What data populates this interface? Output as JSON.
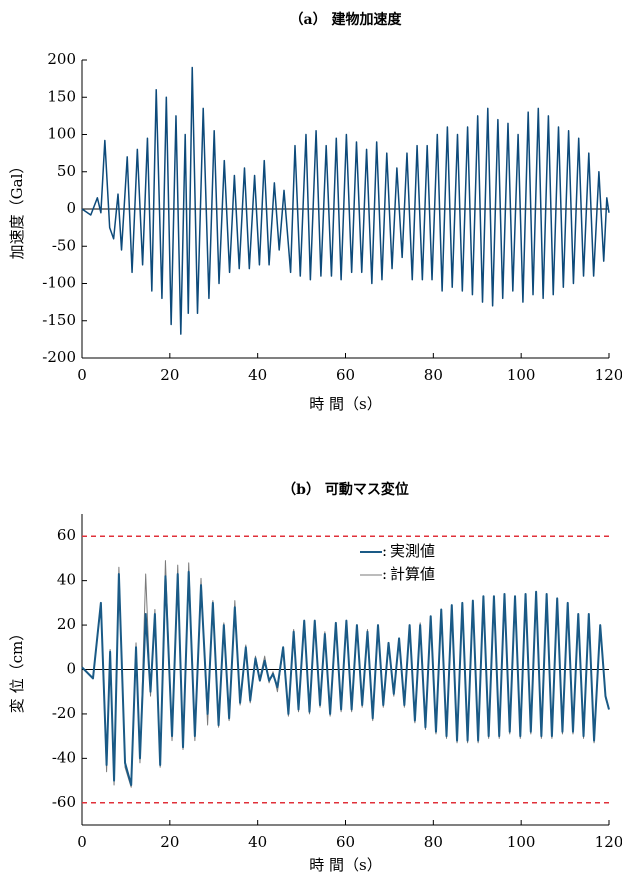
{
  "chart_data": [
    {
      "type": "line",
      "title": "（a） 建物加速度",
      "x_label": "時 間（s）",
      "y_label": "加速度（Gal）",
      "xlim": [
        0,
        120
      ],
      "xticks": [
        0,
        20,
        40,
        60,
        80,
        100,
        120
      ],
      "ylim": [
        -200,
        200
      ],
      "yticks": [
        -200,
        -150,
        -100,
        -50,
        0,
        50,
        100,
        150,
        200
      ],
      "x": [
        0,
        2,
        3.5,
        4.3,
        5.2,
        6.3,
        7.2,
        8.2,
        9,
        10.3,
        11.4,
        12.6,
        13.8,
        14.9,
        15.9,
        16.9,
        18.2,
        19.2,
        20.3,
        21.4,
        22.5,
        23.5,
        24.2,
        25.1,
        26.3,
        27.6,
        28.9,
        30.1,
        31.2,
        32.4,
        33.6,
        34.7,
        35.8,
        37,
        38.1,
        39.3,
        40.4,
        41.5,
        42.6,
        43.8,
        44.9,
        46,
        47.5,
        48.5,
        49.7,
        51,
        52,
        53.3,
        54.4,
        55.6,
        56.8,
        57.9,
        59,
        60.2,
        61.4,
        62.5,
        63.7,
        64.8,
        66,
        67.1,
        68.3,
        69.4,
        70.6,
        71.7,
        72.9,
        74,
        75.2,
        76.3,
        77.5,
        78.6,
        79.7,
        80.9,
        82,
        83.2,
        84.3,
        85.5,
        86.6,
        87.8,
        88.9,
        90.1,
        91.2,
        92.4,
        93.5,
        94.7,
        95.8,
        97,
        98.1,
        99.3,
        100.4,
        101.6,
        102.7,
        103.9,
        105,
        106.2,
        107.3,
        108.5,
        109.6,
        110.8,
        111.9,
        113.1,
        114.2,
        115.4,
        116.5,
        117.7,
        118.8,
        119.5,
        120
      ],
      "series": [
        {
          "name": "建物加速度",
          "color": "#0d4a7a",
          "values": [
            0,
            -8,
            15,
            -5,
            92,
            -25,
            -40,
            20,
            -55,
            70,
            -85,
            80,
            -75,
            95,
            -110,
            160,
            -120,
            150,
            -155,
            125,
            -168,
            100,
            -140,
            190,
            -140,
            135,
            -120,
            105,
            -100,
            65,
            -85,
            45,
            -80,
            55,
            -80,
            45,
            -75,
            65,
            -75,
            35,
            -55,
            25,
            -85,
            85,
            -90,
            100,
            -95,
            105,
            -90,
            85,
            -90,
            95,
            -95,
            100,
            -85,
            90,
            -85,
            80,
            -100,
            90,
            -95,
            75,
            -80,
            55,
            -65,
            75,
            -95,
            85,
            -95,
            85,
            -95,
            100,
            -110,
            110,
            -105,
            100,
            -110,
            110,
            -115,
            125,
            -125,
            135,
            -130,
            120,
            -120,
            115,
            -110,
            100,
            -125,
            130,
            -115,
            135,
            -120,
            125,
            -115,
            110,
            -105,
            105,
            -100,
            95,
            -90,
            75,
            -90,
            50,
            -70,
            15,
            -5
          ]
        }
      ]
    },
    {
      "type": "line",
      "title": "（b） 可動マス変位",
      "x_label": "時 間（s）",
      "y_label": "変 位（cm）",
      "xlim": [
        0,
        120
      ],
      "xticks": [
        0,
        20,
        40,
        60,
        80,
        100,
        120
      ],
      "ylim": [
        -70,
        70
      ],
      "yticks": [
        -60,
        -40,
        -20,
        0,
        20,
        40,
        60
      ],
      "reference_lines": [
        60,
        -60
      ],
      "reference_color": "#e0303a",
      "x": [
        0,
        2.5,
        4.3,
        5.6,
        6.4,
        7.3,
        8.4,
        9.8,
        11.2,
        12.3,
        13.2,
        14.5,
        15.6,
        16.6,
        17.8,
        19,
        20.5,
        21.8,
        23,
        24.3,
        25.7,
        27.1,
        28.6,
        29.8,
        31.1,
        32.3,
        33.5,
        34.8,
        36,
        37.3,
        38.3,
        39.5,
        40.5,
        41.6,
        42.6,
        43.5,
        44.5,
        45.8,
        47,
        48.2,
        49.3,
        50.6,
        51.8,
        53,
        54.2,
        55.3,
        56.5,
        57.8,
        59,
        60.2,
        61.4,
        62.6,
        63.8,
        65,
        66.2,
        67.4,
        68.6,
        69.8,
        71,
        72.2,
        73.4,
        74.6,
        75.8,
        77,
        78.2,
        79.4,
        80.6,
        81.8,
        83,
        84.2,
        85.4,
        86.6,
        87.8,
        89,
        90.2,
        91.4,
        92.6,
        93.8,
        95,
        96.2,
        97.4,
        98.6,
        99.8,
        101,
        102.2,
        103.4,
        104.6,
        105.8,
        107,
        108.2,
        109.4,
        110.6,
        111.8,
        113,
        114.2,
        115.4,
        116.6,
        118,
        119.2,
        120
      ],
      "series": [
        {
          "name": "実測値",
          "color": "#1a5a86",
          "width": 2,
          "values": [
            1,
            -4,
            30,
            -43,
            8,
            -50,
            43,
            -42,
            -52,
            10,
            -40,
            25,
            -10,
            25,
            -43,
            42,
            -30,
            43,
            -35,
            44,
            -30,
            38,
            -20,
            30,
            -25,
            20,
            -22,
            28,
            -15,
            10,
            -14,
            5,
            -5,
            4,
            -5,
            -2,
            -8,
            10,
            -20,
            17,
            -18,
            22,
            -19,
            22,
            -16,
            16,
            -20,
            21,
            -18,
            22,
            -18,
            20,
            -16,
            17,
            -22,
            20,
            -16,
            12,
            -11,
            14,
            -16,
            20,
            -23,
            20,
            -26,
            24,
            -28,
            27,
            -30,
            29,
            -32,
            30,
            -32,
            31,
            -32,
            33,
            -30,
            33,
            -30,
            34,
            -28,
            33,
            -30,
            34,
            -28,
            35,
            -30,
            34,
            -30,
            32,
            -28,
            30,
            -28,
            25,
            -30,
            25,
            -32,
            20,
            -12,
            -18
          ]
        },
        {
          "name": "計算値",
          "color": "#7a7a7a",
          "width": 1,
          "values": [
            1,
            -4,
            29,
            -46,
            9,
            -52,
            46,
            -44,
            -53,
            12,
            -42,
            43,
            -12,
            27,
            -44,
            49,
            -32,
            47,
            -36,
            48,
            -32,
            41,
            -25,
            31,
            -26,
            21,
            -23,
            31,
            -16,
            11,
            -15,
            6,
            -4,
            6,
            -6,
            -1,
            -10,
            9,
            -21,
            18,
            -19,
            22,
            -20,
            22,
            -17,
            17,
            -21,
            21,
            -19,
            22,
            -19,
            20,
            -17,
            18,
            -23,
            20,
            -17,
            12,
            -12,
            14,
            -17,
            20,
            -24,
            21,
            -27,
            24,
            -29,
            27,
            -31,
            29,
            -33,
            30,
            -33,
            31,
            -33,
            33,
            -31,
            33,
            -31,
            34,
            -29,
            33,
            -31,
            34,
            -29,
            35,
            -31,
            34,
            -31,
            32,
            -29,
            30,
            -29,
            25,
            -31,
            25,
            -33,
            20,
            -13,
            -18
          ]
        }
      ]
    }
  ]
}
